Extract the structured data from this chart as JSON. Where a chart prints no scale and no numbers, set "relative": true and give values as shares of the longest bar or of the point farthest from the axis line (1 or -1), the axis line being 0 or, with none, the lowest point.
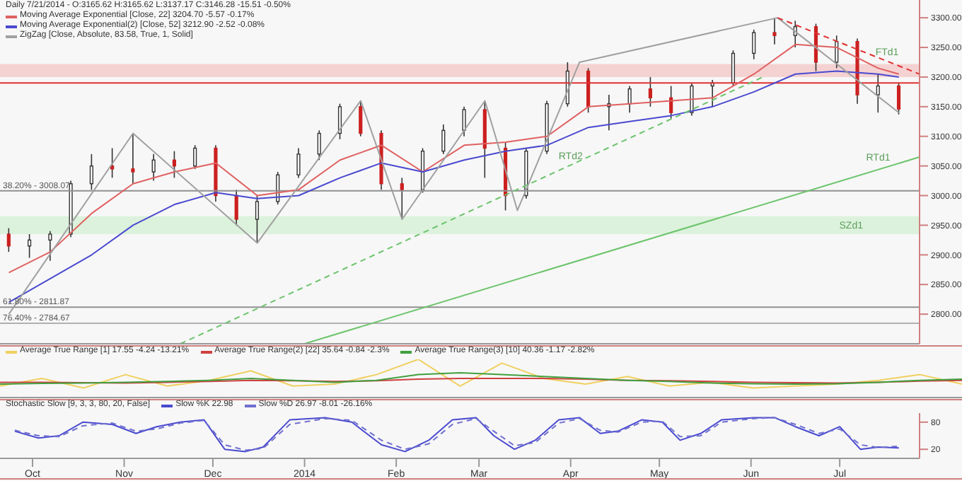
{
  "chart_data": [
    {
      "type": "candlestick",
      "title": "Daily 7/21/2014 - O:3165.62 H:3165.62 L:3137.17 C:3146.28 -15.51 -0.50%",
      "legend": "top left",
      "tick_labels": "y",
      "xlim": [
        "2013-09-20",
        "2014-07-28"
      ],
      "ylim": [
        2750,
        3330
      ],
      "yticks": [
        {
          "value": 2800,
          "label": "2800.00"
        },
        {
          "value": 2850,
          "label": "2850.00"
        },
        {
          "value": 2900,
          "label": "2900.00"
        },
        {
          "value": 2950,
          "label": "2950.00"
        },
        {
          "value": 3000,
          "label": "3000.00"
        },
        {
          "value": 3050,
          "label": "3050.00"
        },
        {
          "value": 3100,
          "label": "3100.00"
        },
        {
          "value": 3150,
          "label": "3150.00"
        },
        {
          "value": 3200,
          "label": "3200.00"
        },
        {
          "value": 3250,
          "label": "3250.00"
        },
        {
          "value": 3300,
          "label": "3300.00"
        }
      ],
      "x": [
        "2013-09-23",
        "2013-09-30",
        "2013-10-07",
        "2013-10-14",
        "2013-10-21",
        "2013-10-28",
        "2013-11-04",
        "2013-11-11",
        "2013-11-18",
        "2013-11-25",
        "2013-12-02",
        "2013-12-09",
        "2013-12-16",
        "2013-12-23",
        "2013-12-30",
        "2014-01-06",
        "2014-01-13",
        "2014-01-20",
        "2014-01-27",
        "2014-02-03",
        "2014-02-10",
        "2014-02-17",
        "2014-02-24",
        "2014-03-03",
        "2014-03-10",
        "2014-03-17",
        "2014-03-24",
        "2014-03-31",
        "2014-04-07",
        "2014-04-14",
        "2014-04-21",
        "2014-04-28",
        "2014-05-05",
        "2014-05-12",
        "2014-05-19",
        "2014-05-26",
        "2014-06-02",
        "2014-06-09",
        "2014-06-16",
        "2014-06-23",
        "2014-06-30",
        "2014-07-07",
        "2014-07-14",
        "2014-07-21"
      ],
      "ohlc": [
        [
          2935,
          2945,
          2905,
          2915
        ],
        [
          2915,
          2935,
          2895,
          2925
        ],
        [
          2925,
          2940,
          2890,
          2935
        ],
        [
          2935,
          3025,
          2930,
          3020
        ],
        [
          3020,
          3070,
          3010,
          3050
        ],
        [
          3050,
          3080,
          3030,
          3045
        ],
        [
          3045,
          3105,
          3020,
          3040
        ],
        [
          3040,
          3070,
          3025,
          3060
        ],
        [
          3060,
          3075,
          3030,
          3050
        ],
        [
          3050,
          3085,
          3045,
          3080
        ],
        [
          3080,
          3085,
          2990,
          3000
        ],
        [
          3000,
          3010,
          2950,
          2960
        ],
        [
          2960,
          3000,
          2920,
          2990
        ],
        [
          2990,
          3040,
          2985,
          3035
        ],
        [
          3035,
          3080,
          3030,
          3070
        ],
        [
          3070,
          3110,
          3060,
          3105
        ],
        [
          3105,
          3155,
          3095,
          3150
        ],
        [
          3150,
          3160,
          3100,
          3105
        ],
        [
          3105,
          3110,
          3010,
          3020
        ],
        [
          3020,
          3030,
          2960,
          3010
        ],
        [
          3010,
          3080,
          3005,
          3075
        ],
        [
          3075,
          3120,
          3070,
          3110
        ],
        [
          3110,
          3150,
          3100,
          3145
        ],
        [
          3145,
          3160,
          3030,
          3080
        ],
        [
          3080,
          3090,
          2975,
          3000
        ],
        [
          3000,
          3080,
          2995,
          3075
        ],
        [
          3075,
          3160,
          3070,
          3155
        ],
        [
          3155,
          3225,
          3150,
          3210
        ],
        [
          3210,
          3215,
          3140,
          3150
        ],
        [
          3150,
          3170,
          3110,
          3155
        ],
        [
          3155,
          3185,
          3140,
          3180
        ],
        [
          3180,
          3200,
          3150,
          3165
        ],
        [
          3165,
          3185,
          3130,
          3140
        ],
        [
          3140,
          3190,
          3135,
          3185
        ],
        [
          3185,
          3195,
          3150,
          3190
        ],
        [
          3190,
          3245,
          3185,
          3240
        ],
        [
          3240,
          3280,
          3230,
          3275
        ],
        [
          3275,
          3300,
          3255,
          3270
        ],
        [
          3270,
          3295,
          3250,
          3285
        ],
        [
          3285,
          3290,
          3210,
          3225
        ],
        [
          3225,
          3270,
          3215,
          3260
        ],
        [
          3260,
          3265,
          3155,
          3170
        ],
        [
          3170,
          3205,
          3140,
          3185
        ],
        [
          3185,
          3190,
          3137,
          3146
        ]
      ],
      "series": [
        {
          "type": "line",
          "name": "Moving Average Exponential [Close, 22] 3204.70 -5.57 -0.17%",
          "color": "#e06060",
          "x": [
            "2013-09-23",
            "2013-10-07",
            "2013-10-21",
            "2013-11-04",
            "2013-11-18",
            "2013-12-02",
            "2013-12-16",
            "2013-12-30",
            "2014-01-13",
            "2014-01-27",
            "2014-02-10",
            "2014-02-24",
            "2014-03-10",
            "2014-03-24",
            "2014-04-07",
            "2014-04-21",
            "2014-05-05",
            "2014-05-19",
            "2014-06-02",
            "2014-06-16",
            "2014-06-30",
            "2014-07-14",
            "2014-07-21"
          ],
          "values": [
            2870,
            2905,
            2970,
            3020,
            3040,
            3055,
            3000,
            3010,
            3060,
            3085,
            3040,
            3085,
            3090,
            3100,
            3150,
            3155,
            3160,
            3165,
            3205,
            3255,
            3250,
            3215,
            3205
          ]
        },
        {
          "type": "line",
          "name": "Moving Average Exponential(2) [Close, 52] 3212.90 -2.52 -0.08%",
          "color": "#4a4ad0",
          "x": [
            "2013-09-23",
            "2013-10-07",
            "2013-10-21",
            "2013-11-04",
            "2013-11-18",
            "2013-12-02",
            "2013-12-16",
            "2013-12-30",
            "2014-01-13",
            "2014-01-27",
            "2014-02-10",
            "2014-02-24",
            "2014-03-10",
            "2014-03-24",
            "2014-04-07",
            "2014-04-21",
            "2014-05-05",
            "2014-05-19",
            "2014-06-02",
            "2014-06-16",
            "2014-06-30",
            "2014-07-14",
            "2014-07-21"
          ],
          "values": [
            2820,
            2860,
            2900,
            2950,
            2985,
            3005,
            2995,
            3000,
            3030,
            3055,
            3040,
            3060,
            3075,
            3085,
            3115,
            3125,
            3135,
            3150,
            3175,
            3205,
            3210,
            3205,
            3200
          ]
        },
        {
          "type": "line",
          "name": "ZigZag [Close, Absolute, 83.58, True, 1, Solid]",
          "color": "#a0a0a0",
          "x": [
            "2013-09-23",
            "2013-11-04",
            "2013-12-16",
            "2014-01-20",
            "2014-02-03",
            "2014-03-03",
            "2014-03-14",
            "2014-04-04",
            "2014-06-10",
            "2014-07-21"
          ],
          "values": [
            2800,
            3105,
            2920,
            3160,
            2960,
            3160,
            2975,
            3225,
            3300,
            3140
          ]
        },
        {
          "type": "line",
          "color": "#6cc46c",
          "x": [
            "2014-01-01",
            "2014-07-28"
          ],
          "values": [
            2750,
            3065
          ]
        },
        {
          "type": "line",
          "color": "#6cc46c",
          "line_style": "dashed",
          "x": [
            "2013-11-20",
            "2014-06-05"
          ],
          "values": [
            2750,
            3200
          ]
        },
        {
          "type": "line",
          "color": "#e03030",
          "line_style": "dashed",
          "x": [
            "2014-06-10",
            "2014-07-28"
          ],
          "values": [
            3300,
            3205
          ]
        }
      ],
      "ref_lines": [
        {
          "axis": "y",
          "value": 3008.07,
          "color": "#909090"
        },
        {
          "axis": "y",
          "value": 2811.87,
          "color": "#909090"
        },
        {
          "axis": "y",
          "value": 2784.67,
          "color": "#b0b0b0"
        },
        {
          "axis": "y",
          "value": 3190,
          "color": "#e03030"
        }
      ],
      "bands": [
        {
          "axis": "y",
          "from": 3200,
          "to": 3222,
          "color": "#f4c8c8"
        },
        {
          "axis": "y",
          "from": 2935,
          "to": 2965,
          "color": "#d4f0d4",
          "label": "SZd1"
        }
      ],
      "annotations": [
        {
          "text": "FTd1",
          "x": "2014-07-17",
          "y": 3227
        },
        {
          "text": "RTd2",
          "x": "2014-04-01",
          "y": 3052
        },
        {
          "text": "RTd1",
          "x": "2014-07-14",
          "y": 3049
        },
        {
          "text": "38.20% - 3008.07",
          "x": "2013-09-20",
          "y": 3008.07
        },
        {
          "text": "61.80% - 2811.87",
          "x": "2013-09-20",
          "y": 2811.87
        },
        {
          "text": "76.40% - 2784.67",
          "x": "2013-09-20",
          "y": 2784.67
        }
      ]
    },
    {
      "type": "line",
      "relative": true,
      "legend": "top left",
      "tick_labels": false,
      "categories": [
        null,
        null,
        null,
        null,
        null,
        null,
        null,
        null,
        null,
        null,
        null,
        null,
        null,
        null,
        null,
        null,
        null,
        null,
        null,
        null,
        null,
        null,
        null,
        null
      ],
      "series": [
        {
          "name": "Average True Range [1] 17.55 -4.24 -13.21%",
          "color": "#f0d060",
          "values": [
            0.3,
            0.5,
            0.25,
            0.6,
            0.3,
            0.45,
            0.7,
            0.3,
            0.35,
            0.6,
            1,
            0.3,
            0.9,
            0.5,
            0.35,
            0.55,
            0.3,
            0.4,
            0.25,
            0.3,
            0.35,
            0.45,
            0.6,
            0.35
          ]
        },
        {
          "name": "Average True Range(2) [22] 35.64 -0.84 -2.3%",
          "color": "#d04040",
          "values": [
            0.4,
            0.4,
            0.39,
            0.38,
            0.4,
            0.42,
            0.45,
            0.44,
            0.42,
            0.44,
            0.48,
            0.5,
            0.5,
            0.5,
            0.48,
            0.45,
            0.44,
            0.42,
            0.4,
            0.39,
            0.38,
            0.4,
            0.43,
            0.45
          ]
        },
        {
          "name": "Average True Range(3) [10] 40.36 -1.17 -2.82%",
          "color": "#40a040",
          "values": [
            0.35,
            0.37,
            0.38,
            0.4,
            0.42,
            0.45,
            0.5,
            0.45,
            0.4,
            0.45,
            0.6,
            0.65,
            0.6,
            0.55,
            0.5,
            0.45,
            0.42,
            0.38,
            0.36,
            0.35,
            0.36,
            0.4,
            0.45,
            0.48
          ]
        }
      ]
    },
    {
      "type": "line",
      "title": "Stochastic Slow [9, 3, 3, 80, 20, False]",
      "legend": "top left",
      "xlim": [
        "2013-09-20",
        "2014-07-28"
      ],
      "ylim": [
        0,
        100
      ],
      "yticks": [
        20,
        80
      ],
      "xticks": [
        {
          "value": "2013-10-01",
          "label": "Oct"
        },
        {
          "value": "2013-11-01",
          "label": "Nov"
        },
        {
          "value": "2013-12-01",
          "label": "Dec"
        },
        {
          "value": "2014-01-01",
          "label": "2014"
        },
        {
          "value": "2014-02-01",
          "label": "Feb"
        },
        {
          "value": "2014-03-01",
          "label": "Mar"
        },
        {
          "value": "2014-04-01",
          "label": "Apr"
        },
        {
          "value": "2014-05-01",
          "label": "May"
        },
        {
          "value": "2014-06-01",
          "label": "Jun"
        },
        {
          "value": "2014-07-01",
          "label": "Jul"
        }
      ],
      "series": [
        {
          "name": "Slow %K 22.98",
          "color": "#4a4ad0",
          "x": [
            "2013-09-25",
            "2013-10-03",
            "2013-10-10",
            "2013-10-18",
            "2013-10-28",
            "2013-11-05",
            "2013-11-12",
            "2013-11-20",
            "2013-11-28",
            "2013-12-05",
            "2013-12-12",
            "2013-12-18",
            "2013-12-27",
            "2014-01-08",
            "2014-01-17",
            "2014-01-27",
            "2014-02-04",
            "2014-02-12",
            "2014-02-20",
            "2014-02-28",
            "2014-03-06",
            "2014-03-13",
            "2014-03-20",
            "2014-03-28",
            "2014-04-04",
            "2014-04-11",
            "2014-04-17",
            "2014-04-25",
            "2014-05-02",
            "2014-05-08",
            "2014-05-15",
            "2014-05-22",
            "2014-06-02",
            "2014-06-09",
            "2014-06-16",
            "2014-06-24",
            "2014-07-01",
            "2014-07-08",
            "2014-07-14",
            "2014-07-21"
          ],
          "values": [
            60,
            45,
            50,
            80,
            75,
            55,
            70,
            80,
            85,
            20,
            15,
            25,
            85,
            90,
            80,
            30,
            15,
            40,
            85,
            90,
            50,
            20,
            40,
            85,
            90,
            55,
            60,
            85,
            80,
            40,
            55,
            85,
            90,
            90,
            70,
            50,
            70,
            20,
            25,
            23
          ]
        },
        {
          "name": "Slow %D 26.97 -8.01 -26.16%",
          "color": "#7070d0",
          "line_style": "dashed",
          "x": [
            "2013-09-25",
            "2013-10-03",
            "2013-10-10",
            "2013-10-18",
            "2013-10-28",
            "2013-11-05",
            "2013-11-12",
            "2013-11-20",
            "2013-11-28",
            "2013-12-05",
            "2013-12-12",
            "2013-12-18",
            "2013-12-27",
            "2014-01-08",
            "2014-01-17",
            "2014-01-27",
            "2014-02-04",
            "2014-02-12",
            "2014-02-20",
            "2014-02-28",
            "2014-03-06",
            "2014-03-13",
            "2014-03-20",
            "2014-03-28",
            "2014-04-04",
            "2014-04-11",
            "2014-04-17",
            "2014-04-25",
            "2014-05-02",
            "2014-05-08",
            "2014-05-15",
            "2014-05-22",
            "2014-06-02",
            "2014-06-09",
            "2014-06-16",
            "2014-06-24",
            "2014-07-01",
            "2014-07-08",
            "2014-07-14",
            "2014-07-21"
          ],
          "values": [
            62,
            50,
            48,
            72,
            78,
            60,
            65,
            78,
            84,
            30,
            18,
            22,
            75,
            88,
            84,
            40,
            20,
            32,
            75,
            88,
            60,
            28,
            35,
            78,
            88,
            62,
            58,
            80,
            82,
            48,
            50,
            80,
            88,
            90,
            75,
            55,
            65,
            30,
            24,
            27
          ]
        }
      ]
    }
  ]
}
